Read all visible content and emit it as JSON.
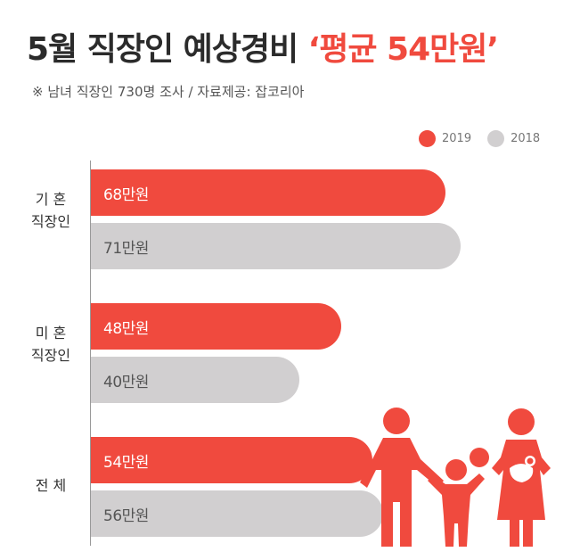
{
  "title": {
    "main": "5월 직장인 예상경비 ",
    "highlight": "‘평균 54만원’"
  },
  "subtitle": "※ 남녀 직장인 730명 조사  / 자료제공: 잡코리아",
  "colors": {
    "series_2019": "#f04a3e",
    "series_2018": "#d1cfd0",
    "title": "#2b2b2b",
    "axis": "#999999"
  },
  "chart_data": {
    "type": "bar",
    "orientation": "horizontal",
    "categories": [
      "기 혼\n직장인",
      "미 혼\n직장인",
      "전 체"
    ],
    "series": [
      {
        "name": "2019",
        "values": [
          68,
          48,
          54
        ],
        "labels": [
          "68만원",
          "48만원",
          "54만원"
        ],
        "color": "#f04a3e"
      },
      {
        "name": "2018",
        "values": [
          71,
          40,
          56
        ],
        "labels": [
          "71만원",
          "40만원",
          "56만원"
        ],
        "color": "#d1cfd0"
      }
    ],
    "unit": "만원",
    "xlim": [
      0,
      71
    ],
    "legend_position": "top-right",
    "grid": false
  },
  "illustration": {
    "icon": "family-icon"
  }
}
